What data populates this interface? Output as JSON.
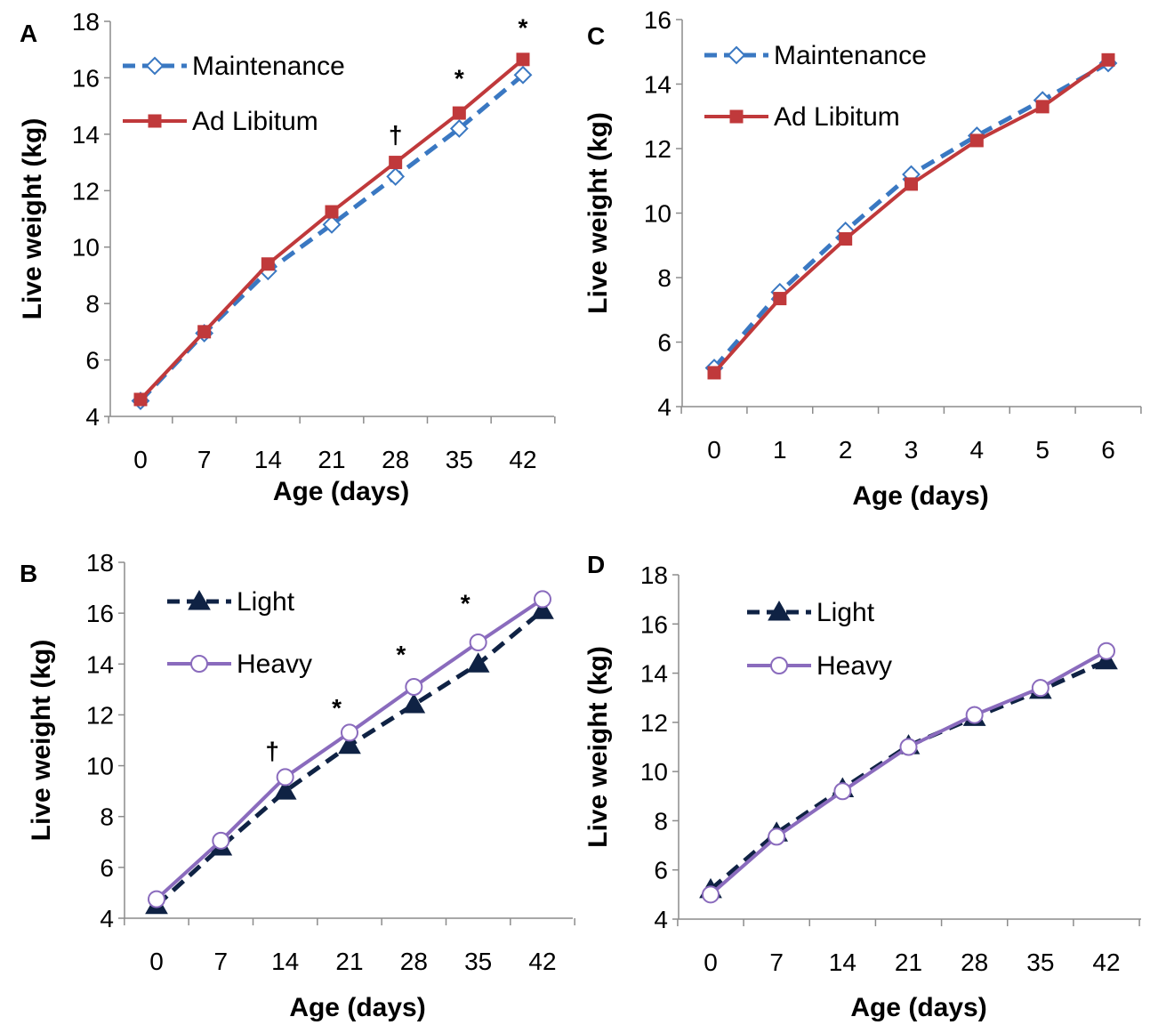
{
  "chart_data": [
    {
      "panel": "A",
      "type": "line",
      "xlabel": "Age (days)",
      "ylabel": "Live weight (kg)",
      "x": [
        "0",
        "7",
        "14",
        "21",
        "28",
        "35",
        "42"
      ],
      "ylim": [
        4,
        18
      ],
      "yticks": [
        "4",
        "6",
        "8",
        "10",
        "12",
        "14",
        "16",
        "18"
      ],
      "legend": "top-left",
      "series": [
        {
          "name": "Maintenance",
          "color": "#3a78c2",
          "dash": true,
          "marker": "diamond-open",
          "values": [
            4.55,
            6.95,
            9.15,
            10.8,
            12.5,
            14.2,
            16.1
          ]
        },
        {
          "name": "Ad Libitum",
          "color": "#c0393b",
          "dash": false,
          "marker": "square",
          "values": [
            4.6,
            7.0,
            9.4,
            11.25,
            13.0,
            14.75,
            16.65
          ]
        }
      ],
      "annotations": [
        {
          "x_index": 4,
          "y": 14.0,
          "text": "†"
        },
        {
          "x_index": 5,
          "y": 16.0,
          "text": "*"
        },
        {
          "x_index": 6,
          "y": 17.8,
          "text": "*"
        }
      ]
    },
    {
      "panel": "B",
      "type": "line",
      "xlabel": "Age (days)",
      "ylabel": "Live weight (kg)",
      "x": [
        "0",
        "7",
        "14",
        "21",
        "28",
        "35",
        "42"
      ],
      "ylim": [
        4,
        18
      ],
      "yticks": [
        "4",
        "6",
        "8",
        "10",
        "12",
        "14",
        "16",
        "18"
      ],
      "legend": "top-left",
      "series": [
        {
          "name": "Light",
          "color": "#0f2244",
          "dash": true,
          "marker": "triangle",
          "values": [
            4.5,
            6.8,
            9.0,
            10.8,
            12.4,
            14.0,
            16.1
          ]
        },
        {
          "name": "Heavy",
          "color": "#8a6bbd",
          "dash": false,
          "marker": "circle-open",
          "values": [
            4.75,
            7.05,
            9.55,
            11.3,
            13.1,
            14.85,
            16.55
          ]
        }
      ],
      "annotations": [
        {
          "x_index": 1.8,
          "y": 10.6,
          "text": "†"
        },
        {
          "x_index": 2.8,
          "y": 12.3,
          "text": "*"
        },
        {
          "x_index": 3.8,
          "y": 14.4,
          "text": "*"
        },
        {
          "x_index": 4.8,
          "y": 16.4,
          "text": "*"
        }
      ]
    },
    {
      "panel": "C",
      "type": "line",
      "xlabel": "Age (days)",
      "ylabel": "Live weight (kg)",
      "x": [
        "0",
        "1",
        "2",
        "3",
        "4",
        "5",
        "6"
      ],
      "ylim": [
        4,
        16
      ],
      "yticks": [
        "4",
        "6",
        "8",
        "10",
        "12",
        "14",
        "16"
      ],
      "legend": "top-left",
      "series": [
        {
          "name": "Maintenance",
          "color": "#3a78c2",
          "dash": true,
          "marker": "diamond-open",
          "values": [
            5.2,
            7.55,
            9.45,
            11.2,
            12.4,
            13.5,
            14.65
          ]
        },
        {
          "name": "Ad Libitum",
          "color": "#c0393b",
          "dash": false,
          "marker": "square",
          "values": [
            5.05,
            7.35,
            9.2,
            10.9,
            12.25,
            13.3,
            14.75
          ]
        }
      ],
      "annotations": []
    },
    {
      "panel": "D",
      "type": "line",
      "xlabel": "Age (days)",
      "ylabel": "Live weight (kg)",
      "x": [
        "0",
        "7",
        "14",
        "21",
        "28",
        "35",
        "42"
      ],
      "ylim": [
        4,
        18
      ],
      "yticks": [
        "4",
        "6",
        "8",
        "10",
        "12",
        "14",
        "16",
        "18"
      ],
      "legend": "top-left",
      "series": [
        {
          "name": "Light",
          "color": "#0f2244",
          "dash": true,
          "marker": "triangle",
          "values": [
            5.2,
            7.5,
            9.3,
            11.05,
            12.2,
            13.3,
            14.5
          ]
        },
        {
          "name": "Heavy",
          "color": "#8a6bbd",
          "dash": false,
          "marker": "circle-open",
          "values": [
            5.0,
            7.35,
            9.2,
            11.0,
            12.3,
            13.4,
            14.9
          ]
        }
      ],
      "annotations": []
    }
  ]
}
